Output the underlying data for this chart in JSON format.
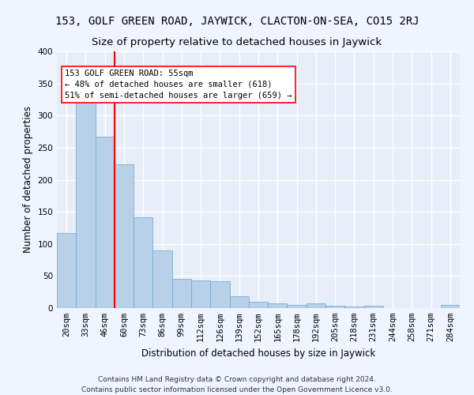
{
  "title": "153, GOLF GREEN ROAD, JAYWICK, CLACTON-ON-SEA, CO15 2RJ",
  "subtitle": "Size of property relative to detached houses in Jaywick",
  "xlabel": "Distribution of detached houses by size in Jaywick",
  "ylabel": "Number of detached properties",
  "bar_color": "#b8d0e8",
  "bar_edge_color": "#7aafd4",
  "background_color": "#e8eef8",
  "grid_color": "#ffffff",
  "categories": [
    "20sqm",
    "33sqm",
    "46sqm",
    "60sqm",
    "73sqm",
    "86sqm",
    "99sqm",
    "112sqm",
    "126sqm",
    "139sqm",
    "152sqm",
    "165sqm",
    "178sqm",
    "192sqm",
    "205sqm",
    "218sqm",
    "231sqm",
    "244sqm",
    "258sqm",
    "271sqm",
    "284sqm"
  ],
  "values": [
    117,
    332,
    267,
    224,
    142,
    90,
    46,
    43,
    42,
    18,
    10,
    7,
    5,
    7,
    4,
    3,
    4,
    0,
    0,
    0,
    5
  ],
  "ylim": [
    0,
    400
  ],
  "yticks": [
    0,
    50,
    100,
    150,
    200,
    250,
    300,
    350,
    400
  ],
  "red_line_x": 2.5,
  "annotation_line1": "153 GOLF GREEN ROAD: 55sqm",
  "annotation_line2": "← 48% of detached houses are smaller (618)",
  "annotation_line3": "51% of semi-detached houses are larger (659) →",
  "footer_line1": "Contains HM Land Registry data © Crown copyright and database right 2024.",
  "footer_line2": "Contains public sector information licensed under the Open Government Licence v3.0.",
  "title_fontsize": 10,
  "subtitle_fontsize": 9.5,
  "axis_label_fontsize": 8.5,
  "tick_fontsize": 7.5,
  "annotation_fontsize": 7.5,
  "footer_fontsize": 6.5
}
